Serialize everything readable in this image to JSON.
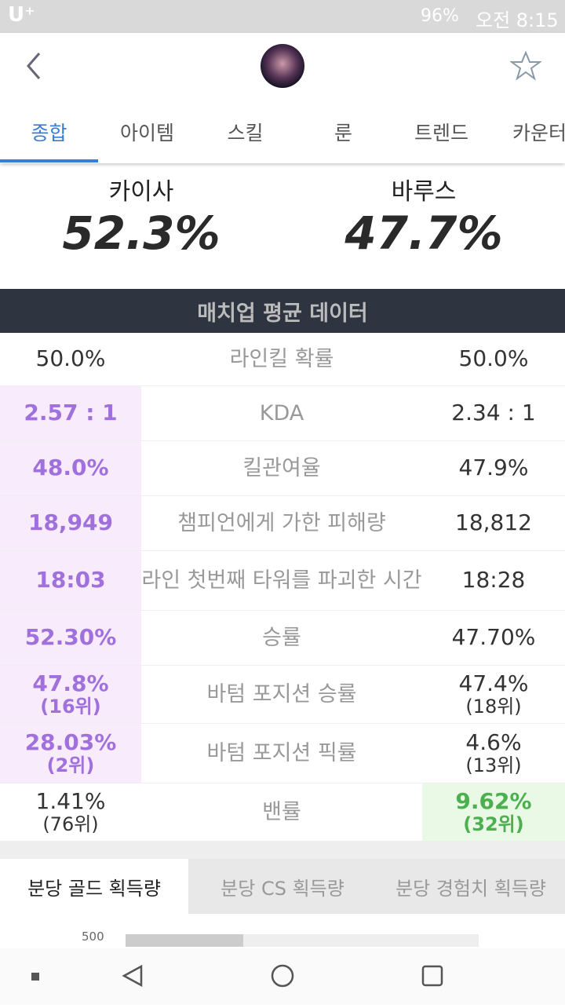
{
  "status_bar": {
    "carrier": "U⁺",
    "battery": "96%",
    "time": "오전 8:15"
  },
  "tabs": [
    "종합",
    "아이템",
    "스킬",
    "룬",
    "트렌드",
    "카운터"
  ],
  "matchup": {
    "left": {
      "name": "카이사",
      "winrate": "52.3%"
    },
    "right": {
      "name": "바루스",
      "winrate": "47.7%"
    }
  },
  "table": {
    "title": "매치업 평균 데이터",
    "rows": [
      {
        "left": "50.0%",
        "label": "라인킬 확률",
        "right": "50.0%"
      },
      {
        "left": "2.57 : 1",
        "label": "KDA",
        "right": "2.34 : 1"
      },
      {
        "left": "48.0%",
        "label": "킬관여율",
        "right": "47.9%"
      },
      {
        "left": "18,949",
        "label": "챔피언에게 가한 피해량",
        "right": "18,812"
      },
      {
        "left": "18:03",
        "label": "라인 첫번째 타워를 파괴한 시간",
        "right": "18:28"
      },
      {
        "left": "52.30%",
        "label": "승률",
        "right": "47.70%"
      },
      {
        "left": "47.8%",
        "left_rank": "(16위)",
        "label": "바텀 포지션 승률",
        "right": "47.4%",
        "right_rank": "(18위)"
      },
      {
        "left": "28.03%",
        "left_rank": "(2위)",
        "label": "바텀 포지션 픽률",
        "right": "4.6%",
        "right_rank": "(13위)"
      },
      {
        "left": "1.41%",
        "left_rank": "(76위)",
        "label": "밴률",
        "right": "9.62%",
        "right_rank": "(32위)"
      }
    ]
  },
  "stat_tabs": [
    "분당 골드 획득량",
    "분당 CS 획득량",
    "분당 경험치 획득량"
  ],
  "chart_tick": "500"
}
